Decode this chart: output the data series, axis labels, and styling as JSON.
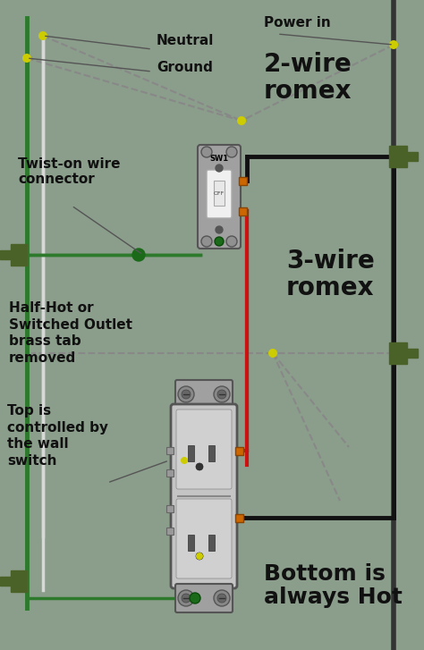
{
  "bg_color": "#8b9d8b",
  "wire_black": "#111111",
  "wire_white": "#d8d8d8",
  "wire_green": "#2d7a2d",
  "wire_red": "#cc1111",
  "yellow": "#cccc00",
  "romex_green": "#4a6228",
  "switch_body": "#b8b8b8",
  "switch_white_part": "#f0f0f0",
  "outlet_body": "#c8c8c8",
  "outlet_face": "#d5d5d5",
  "orange_screw": "#cc6600",
  "dark_green_screw": "#1a5a1a",
  "wall_line": "#555555",
  "dashed_color": "#888888",
  "text_color": "#111111",
  "labels": {
    "neutral": "Neutral",
    "ground": "Ground",
    "power_in": "Power in",
    "two_wire": "2-wire\nromex",
    "three_wire": "3-wire\nromex",
    "twist_on": "Twist-on wire\nconnector",
    "half_hot": "Half-Hot or\nSwitched Outlet\nbrass tab\nremoved",
    "top_controlled": "Top is\ncontrolled by\nthe wall\nswitch",
    "bottom_hot": "Bottom is\nalways Hot"
  }
}
